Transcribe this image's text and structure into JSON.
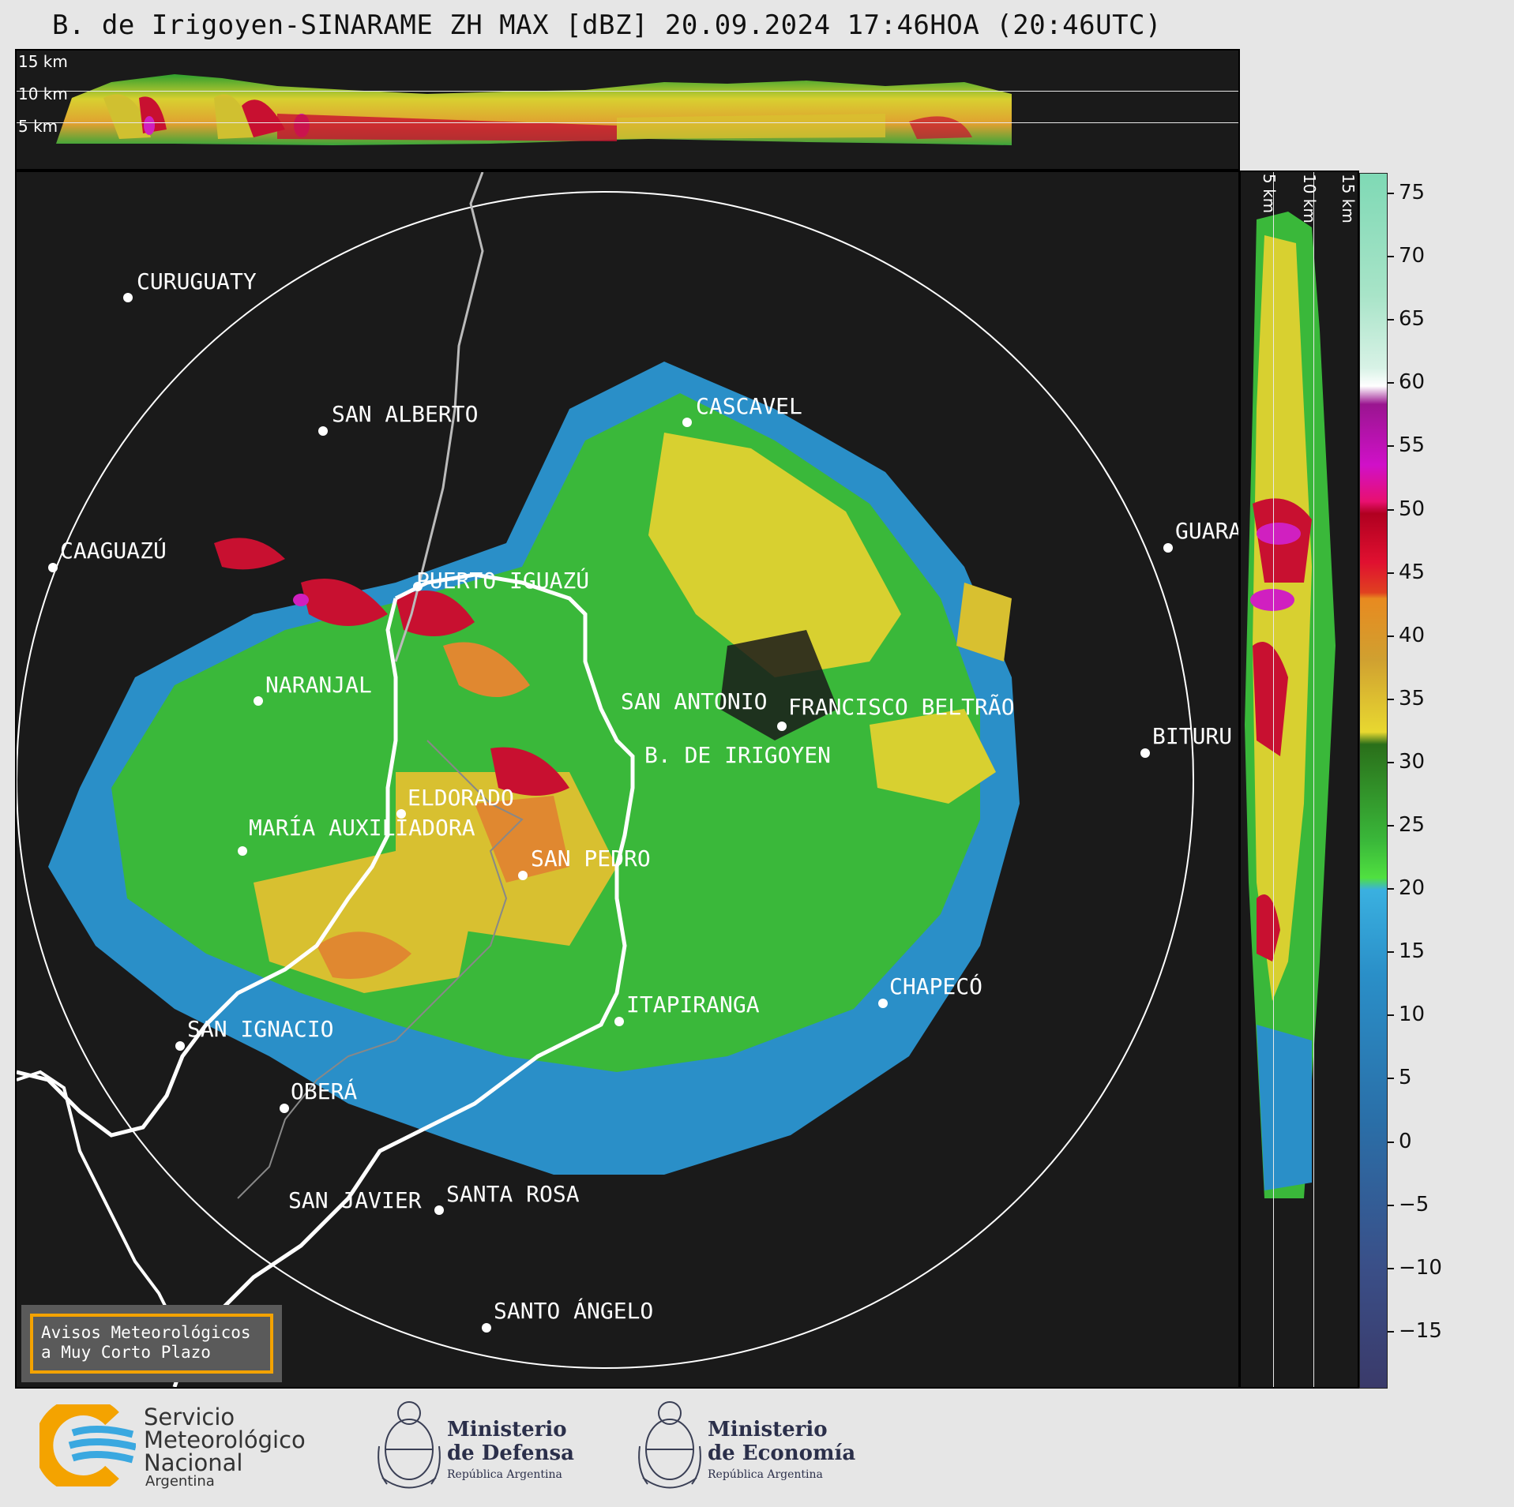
{
  "title": "B. de Irigoyen-SINARAME ZH MAX [dBZ] 20.09.2024 17:46HOA (20:46UTC)",
  "top_panel": {
    "km_labels": [
      "15 km",
      "10 km",
      "5 km"
    ]
  },
  "side_panel": {
    "km_labels": [
      "5 km",
      "10 km",
      "15 km"
    ]
  },
  "cities": [
    {
      "name": "CURUGUATY"
    },
    {
      "name": "SAN ALBERTO"
    },
    {
      "name": "CASCAVEL"
    },
    {
      "name": "CAAGUAZÚ"
    },
    {
      "name": "GUARA"
    },
    {
      "name": "PUERTO IGUAZÚ"
    },
    {
      "name": "NARANJAL"
    },
    {
      "name": "SAN ANTONIO"
    },
    {
      "name": "FRANCISCO BELTRÃO"
    },
    {
      "name": "BITURU"
    },
    {
      "name": "B. DE IRIGOYEN"
    },
    {
      "name": "ELDORADO"
    },
    {
      "name": "MARÍA AUXILIADORA"
    },
    {
      "name": "SAN PEDRO"
    },
    {
      "name": "CHAPECÓ"
    },
    {
      "name": "ITAPIRANGA"
    },
    {
      "name": "SAN IGNACIO"
    },
    {
      "name": "OBERÁ"
    },
    {
      "name": "SAN JAVIER"
    },
    {
      "name": "SANTA ROSA"
    },
    {
      "name": "SANTO ÁNGELO"
    }
  ],
  "colorbar": {
    "ticks": [
      "75",
      "70",
      "65",
      "60",
      "55",
      "50",
      "45",
      "40",
      "35",
      "30",
      "25",
      "20",
      "15",
      "10",
      "5",
      "0",
      "−5",
      "−10",
      "−15"
    ]
  },
  "avisos": {
    "line1": "Avisos Meteorológicos",
    "line2": "a Muy Corto Plazo"
  },
  "logos": {
    "smn": {
      "line1": "Servicio",
      "line2": "Meteorológico",
      "line3": "Nacional",
      "line4": "Argentina"
    },
    "defensa": {
      "line1": "Ministerio",
      "line2": "de Defensa",
      "line3": "República Argentina"
    },
    "economia": {
      "line1": "Ministerio",
      "line2": "de Economía",
      "line3": "República Argentina"
    }
  }
}
